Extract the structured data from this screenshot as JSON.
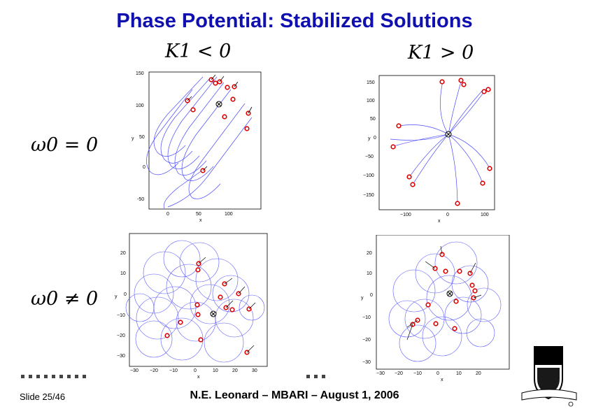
{
  "slide": {
    "title": "Phase Potential:  Stabilized Solutions",
    "col_left": "K1 < 0",
    "col_right": "K1 > 0",
    "row_top": "ω0 = 0",
    "row_bottom": "ω0 ≠ 0",
    "slide_number": "Slide 25/46",
    "footer": "N.E. Leonard – MBARI –  August 1, 2006"
  },
  "chart_data": [
    {
      "type": "line",
      "panel": "top-left",
      "xlabel": "x",
      "ylabel": "y",
      "xticks": [
        0,
        50,
        100
      ],
      "yticks": [
        150,
        100,
        50,
        0,
        -50
      ],
      "xlim": [
        -40,
        145
      ],
      "ylim": [
        -65,
        155
      ]
    },
    {
      "type": "line",
      "panel": "top-right",
      "xlabel": "x",
      "ylabel": "y",
      "xticks": [
        -100,
        0,
        100
      ],
      "yticks": [
        150,
        100,
        50,
        0,
        -50,
        -100,
        -150
      ],
      "xlim": [
        -145,
        125
      ],
      "ylim": [
        -185,
        165
      ]
    },
    {
      "type": "line",
      "panel": "bottom-left",
      "xlabel": "x",
      "ylabel": "y",
      "xticks": [
        -30,
        -20,
        -10,
        0,
        10,
        20,
        30
      ],
      "yticks": [
        20,
        10,
        0,
        -10,
        -20,
        -30
      ],
      "xlim": [
        -32,
        35
      ],
      "ylim": [
        -35,
        25
      ]
    },
    {
      "type": "line",
      "panel": "bottom-right",
      "xlabel": "x",
      "ylabel": "y",
      "xticks": [
        -30,
        -20,
        -10,
        0,
        10,
        20
      ],
      "yticks": [
        20,
        10,
        0,
        -10,
        -20,
        -30
      ],
      "xlim": [
        -32,
        27
      ],
      "ylim": [
        -33,
        25
      ]
    }
  ]
}
